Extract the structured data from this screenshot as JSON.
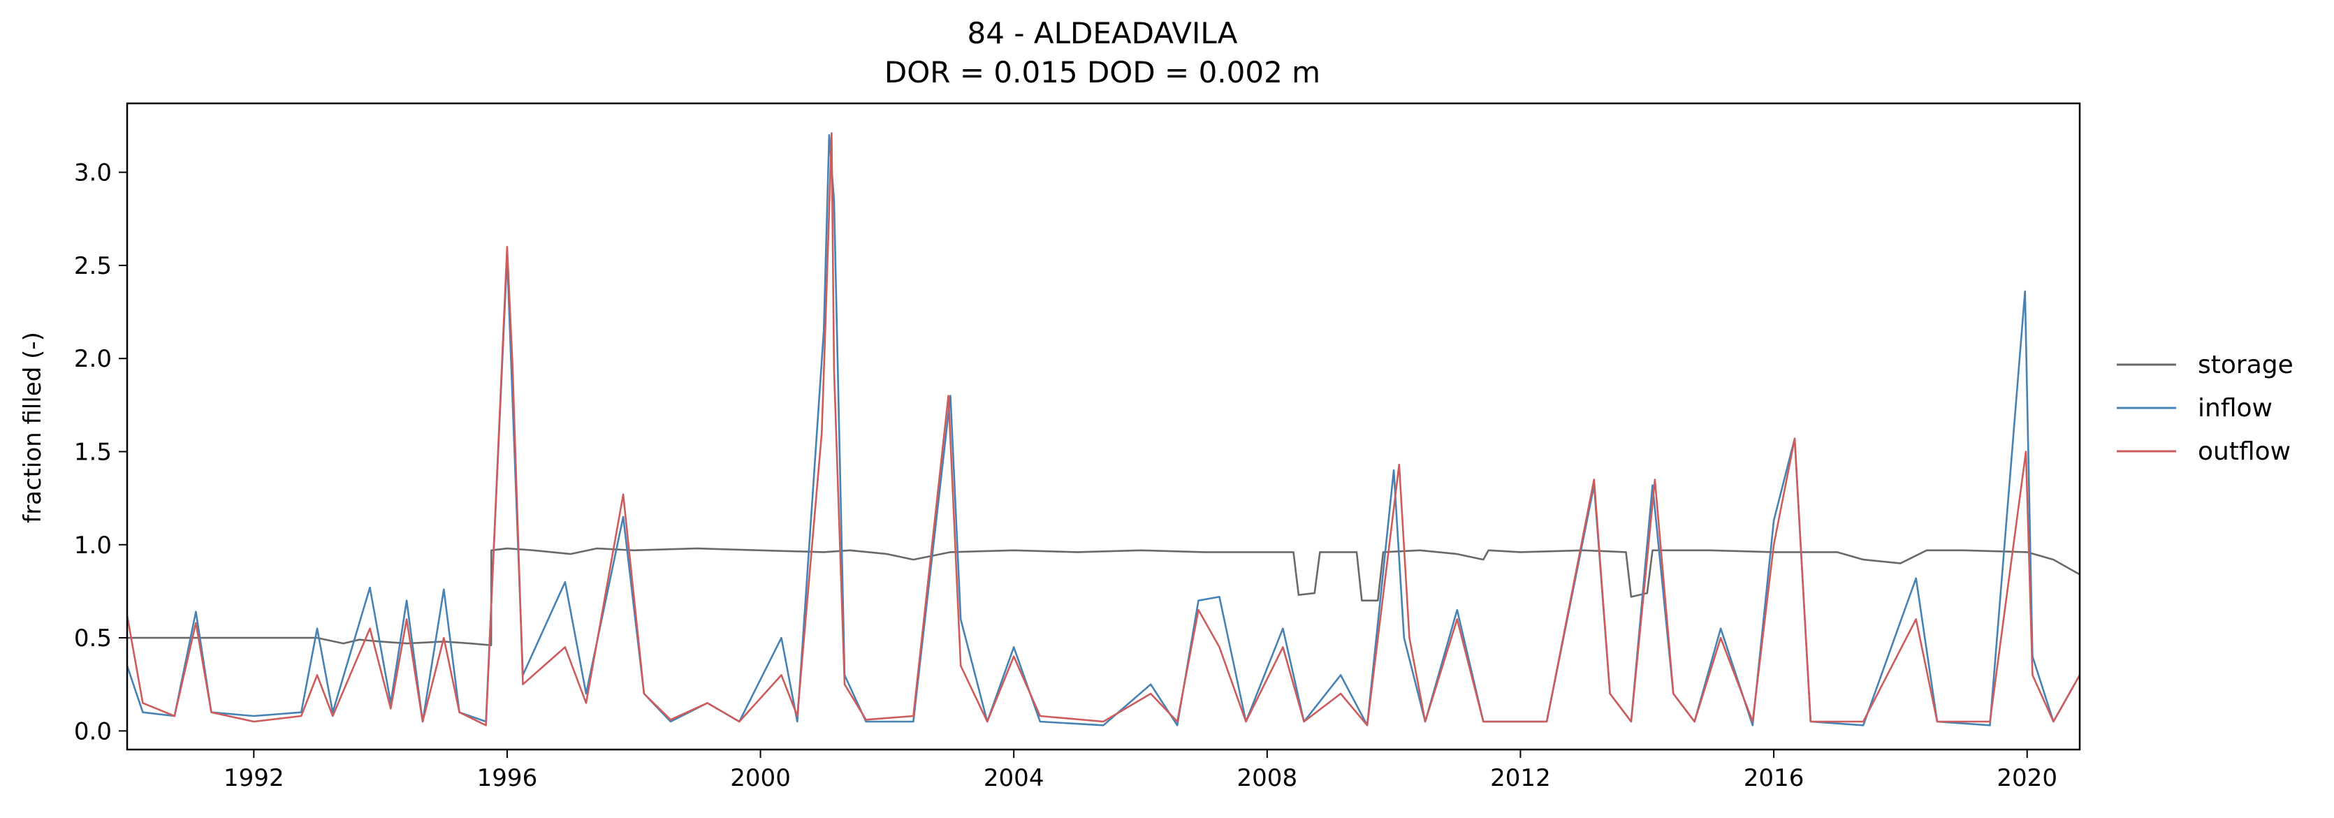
{
  "chart_data": {
    "type": "line",
    "title": "84 - ALDEADAVILA",
    "subtitle": "DOR = 0.015  DOD = 0.002 m",
    "xlabel": "",
    "ylabel": "fraction filled (-)",
    "xlim": [
      "1990-01-01",
      "2020-10-31"
    ],
    "ylim": [
      -0.1,
      3.37
    ],
    "x_ticks": [
      "1992",
      "1996",
      "2000",
      "2004",
      "2008",
      "2012",
      "2016",
      "2020"
    ],
    "y_ticks": [
      "0.0",
      "0.5",
      "1.0",
      "1.5",
      "2.0",
      "2.5",
      "3.0"
    ],
    "grid": false,
    "legend_position": "right, outside plot area",
    "series": [
      {
        "name": "storage",
        "color": "#696969",
        "points": [
          [
            "1990-01-01",
            0.5
          ],
          [
            "1992-12-01",
            0.5
          ],
          [
            "1993-01-01",
            0.5
          ],
          [
            "1993-06-01",
            0.47
          ],
          [
            "1993-09-01",
            0.49
          ],
          [
            "1994-01-01",
            0.48
          ],
          [
            "1994-06-01",
            0.47
          ],
          [
            "1995-01-01",
            0.48
          ],
          [
            "1995-06-01",
            0.47
          ],
          [
            "1995-10-01",
            0.46
          ],
          [
            "1995-10-02",
            0.97
          ],
          [
            "1996-01-01",
            0.98
          ],
          [
            "1996-06-01",
            0.97
          ],
          [
            "1997-01-01",
            0.95
          ],
          [
            "1997-06-01",
            0.98
          ],
          [
            "1998-01-01",
            0.97
          ],
          [
            "1999-01-01",
            0.98
          ],
          [
            "2000-01-01",
            0.97
          ],
          [
            "2001-01-01",
            0.96
          ],
          [
            "2001-06-01",
            0.97
          ],
          [
            "2002-01-01",
            0.95
          ],
          [
            "2002-06-01",
            0.92
          ],
          [
            "2003-01-01",
            0.96
          ],
          [
            "2004-01-01",
            0.97
          ],
          [
            "2005-01-01",
            0.96
          ],
          [
            "2006-01-01",
            0.97
          ],
          [
            "2007-01-01",
            0.96
          ],
          [
            "2008-01-01",
            0.96
          ],
          [
            "2008-06-01",
            0.96
          ],
          [
            "2008-07-01",
            0.73
          ],
          [
            "2008-10-01",
            0.74
          ],
          [
            "2008-11-01",
            0.96
          ],
          [
            "2009-06-01",
            0.96
          ],
          [
            "2009-07-01",
            0.7
          ],
          [
            "2009-10-01",
            0.7
          ],
          [
            "2009-11-01",
            0.96
          ],
          [
            "2010-06-01",
            0.97
          ],
          [
            "2011-01-01",
            0.95
          ],
          [
            "2011-06-01",
            0.92
          ],
          [
            "2011-07-01",
            0.97
          ],
          [
            "2012-01-01",
            0.96
          ],
          [
            "2013-01-01",
            0.97
          ],
          [
            "2013-09-01",
            0.96
          ],
          [
            "2013-10-01",
            0.72
          ],
          [
            "2014-01-01",
            0.74
          ],
          [
            "2014-02-01",
            0.97
          ],
          [
            "2015-01-01",
            0.97
          ],
          [
            "2016-01-01",
            0.96
          ],
          [
            "2017-01-01",
            0.96
          ],
          [
            "2017-06-01",
            0.92
          ],
          [
            "2018-01-01",
            0.9
          ],
          [
            "2018-06-01",
            0.97
          ],
          [
            "2019-01-01",
            0.97
          ],
          [
            "2020-01-01",
            0.96
          ],
          [
            "2020-06-01",
            0.92
          ],
          [
            "2020-10-31",
            0.84
          ]
        ]
      },
      {
        "name": "inflow",
        "color": "#4682b4",
        "points": [
          [
            "1990-01-01",
            0.35
          ],
          [
            "1990-04-01",
            0.1
          ],
          [
            "1990-10-01",
            0.08
          ],
          [
            "1991-02-01",
            0.64
          ],
          [
            "1991-05-01",
            0.1
          ],
          [
            "1992-01-01",
            0.08
          ],
          [
            "1992-10-01",
            0.1
          ],
          [
            "1993-01-01",
            0.55
          ],
          [
            "1993-04-01",
            0.1
          ],
          [
            "1993-11-01",
            0.77
          ],
          [
            "1994-03-01",
            0.15
          ],
          [
            "1994-06-01",
            0.7
          ],
          [
            "1994-09-01",
            0.05
          ],
          [
            "1995-01-01",
            0.76
          ],
          [
            "1995-04-01",
            0.1
          ],
          [
            "1995-09-01",
            0.05
          ],
          [
            "1996-01-01",
            2.55
          ],
          [
            "1996-04-01",
            0.3
          ],
          [
            "1996-12-01",
            0.8
          ],
          [
            "1997-04-01",
            0.2
          ],
          [
            "1997-11-01",
            1.15
          ],
          [
            "1998-03-01",
            0.2
          ],
          [
            "1998-08-01",
            0.05
          ],
          [
            "1999-03-01",
            0.15
          ],
          [
            "1999-09-01",
            0.05
          ],
          [
            "2000-05-01",
            0.5
          ],
          [
            "2000-08-01",
            0.05
          ],
          [
            "2001-01-01",
            2.15
          ],
          [
            "2001-02-01",
            3.2
          ],
          [
            "2001-03-01",
            2.85
          ],
          [
            "2001-05-01",
            0.3
          ],
          [
            "2001-09-01",
            0.05
          ],
          [
            "2002-06-01",
            0.05
          ],
          [
            "2003-01-01",
            1.8
          ],
          [
            "2003-03-01",
            0.6
          ],
          [
            "2003-08-01",
            0.05
          ],
          [
            "2004-01-01",
            0.45
          ],
          [
            "2004-06-01",
            0.05
          ],
          [
            "2005-06-01",
            0.03
          ],
          [
            "2006-03-01",
            0.25
          ],
          [
            "2006-08-01",
            0.03
          ],
          [
            "2006-12-01",
            0.7
          ],
          [
            "2007-04-01",
            0.72
          ],
          [
            "2007-09-01",
            0.05
          ],
          [
            "2008-04-01",
            0.55
          ],
          [
            "2008-08-01",
            0.05
          ],
          [
            "2009-03-01",
            0.3
          ],
          [
            "2009-08-01",
            0.03
          ],
          [
            "2010-01-01",
            1.4
          ],
          [
            "2010-03-01",
            0.5
          ],
          [
            "2010-07-01",
            0.05
          ],
          [
            "2011-01-01",
            0.65
          ],
          [
            "2011-06-01",
            0.05
          ],
          [
            "2012-06-01",
            0.05
          ],
          [
            "2013-03-01",
            1.32
          ],
          [
            "2013-06-01",
            0.2
          ],
          [
            "2013-10-01",
            0.05
          ],
          [
            "2014-02-01",
            1.32
          ],
          [
            "2014-06-01",
            0.2
          ],
          [
            "2014-10-01",
            0.05
          ],
          [
            "2015-03-01",
            0.55
          ],
          [
            "2015-09-01",
            0.03
          ],
          [
            "2016-01-01",
            1.13
          ],
          [
            "2016-05-01",
            1.57
          ],
          [
            "2016-08-01",
            0.05
          ],
          [
            "2017-06-01",
            0.03
          ],
          [
            "2018-04-01",
            0.82
          ],
          [
            "2018-08-01",
            0.05
          ],
          [
            "2019-06-01",
            0.03
          ],
          [
            "2019-12-20",
            2.36
          ],
          [
            "2020-02-01",
            0.4
          ],
          [
            "2020-06-01",
            0.05
          ],
          [
            "2020-10-31",
            0.3
          ]
        ]
      },
      {
        "name": "outflow",
        "color": "#cd5c5c",
        "points": [
          [
            "1990-01-01",
            0.62
          ],
          [
            "1990-04-01",
            0.15
          ],
          [
            "1990-10-01",
            0.08
          ],
          [
            "1991-02-01",
            0.58
          ],
          [
            "1991-05-01",
            0.1
          ],
          [
            "1992-01-01",
            0.05
          ],
          [
            "1992-10-01",
            0.08
          ],
          [
            "1993-01-01",
            0.3
          ],
          [
            "1993-04-01",
            0.08
          ],
          [
            "1993-11-01",
            0.55
          ],
          [
            "1994-03-01",
            0.12
          ],
          [
            "1994-06-01",
            0.6
          ],
          [
            "1994-09-01",
            0.05
          ],
          [
            "1995-01-01",
            0.5
          ],
          [
            "1995-04-01",
            0.1
          ],
          [
            "1995-09-01",
            0.03
          ],
          [
            "1996-01-01",
            2.6
          ],
          [
            "1996-02-01",
            1.97
          ],
          [
            "1996-04-01",
            0.25
          ],
          [
            "1996-12-01",
            0.45
          ],
          [
            "1997-04-01",
            0.15
          ],
          [
            "1997-11-01",
            1.27
          ],
          [
            "1998-03-01",
            0.2
          ],
          [
            "1998-08-01",
            0.06
          ],
          [
            "1999-03-01",
            0.15
          ],
          [
            "1999-09-01",
            0.05
          ],
          [
            "2000-05-01",
            0.3
          ],
          [
            "2000-08-01",
            0.08
          ],
          [
            "2000-12-20",
            1.6
          ],
          [
            "2001-01-10",
            2.17
          ],
          [
            "2001-01-25",
            2.6
          ],
          [
            "2001-02-15",
            3.21
          ],
          [
            "2001-03-01",
            1.94
          ],
          [
            "2001-05-01",
            0.25
          ],
          [
            "2001-09-01",
            0.06
          ],
          [
            "2002-06-01",
            0.08
          ],
          [
            "2002-12-20",
            1.8
          ],
          [
            "2003-03-01",
            0.35
          ],
          [
            "2003-08-01",
            0.05
          ],
          [
            "2004-01-01",
            0.4
          ],
          [
            "2004-06-01",
            0.08
          ],
          [
            "2005-06-01",
            0.05
          ],
          [
            "2006-03-01",
            0.2
          ],
          [
            "2006-08-01",
            0.05
          ],
          [
            "2006-12-01",
            0.65
          ],
          [
            "2007-04-01",
            0.45
          ],
          [
            "2007-09-01",
            0.05
          ],
          [
            "2008-04-01",
            0.45
          ],
          [
            "2008-08-01",
            0.05
          ],
          [
            "2009-03-01",
            0.2
          ],
          [
            "2009-08-01",
            0.03
          ],
          [
            "2010-02-01",
            1.43
          ],
          [
            "2010-04-01",
            0.5
          ],
          [
            "2010-07-01",
            0.05
          ],
          [
            "2011-01-01",
            0.6
          ],
          [
            "2011-06-01",
            0.05
          ],
          [
            "2012-06-01",
            0.05
          ],
          [
            "2013-03-01",
            1.35
          ],
          [
            "2013-06-01",
            0.2
          ],
          [
            "2013-10-01",
            0.05
          ],
          [
            "2014-02-15",
            1.35
          ],
          [
            "2014-06-01",
            0.2
          ],
          [
            "2014-10-01",
            0.05
          ],
          [
            "2015-03-01",
            0.5
          ],
          [
            "2015-09-01",
            0.05
          ],
          [
            "2016-01-01",
            1.0
          ],
          [
            "2016-05-01",
            1.57
          ],
          [
            "2016-08-01",
            0.05
          ],
          [
            "2017-06-01",
            0.05
          ],
          [
            "2018-04-01",
            0.6
          ],
          [
            "2018-08-01",
            0.05
          ],
          [
            "2019-06-01",
            0.05
          ],
          [
            "2019-12-25",
            1.5
          ],
          [
            "2020-02-01",
            0.3
          ],
          [
            "2020-06-01",
            0.05
          ],
          [
            "2020-10-31",
            0.3
          ]
        ]
      }
    ]
  }
}
